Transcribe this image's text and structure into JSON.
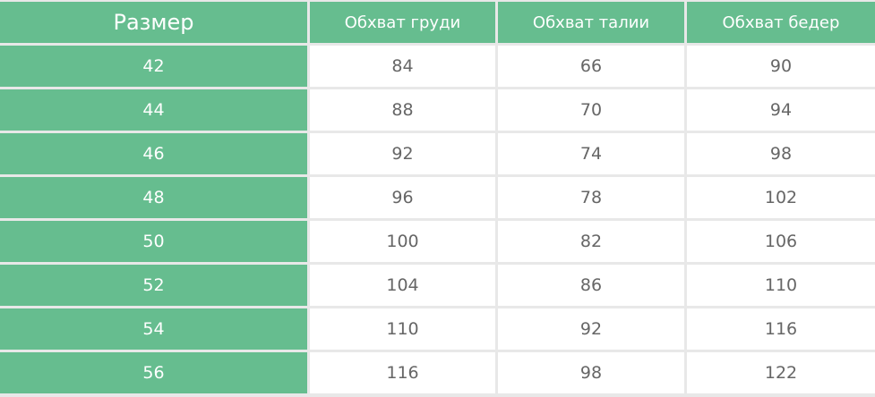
{
  "table": {
    "headers": [
      "Размер",
      "Обхват груди",
      "Обхват талии",
      "Обхват бедер"
    ],
    "rows": [
      [
        "42",
        "84",
        "66",
        "90"
      ],
      [
        "44",
        "88",
        "70",
        "94"
      ],
      [
        "46",
        "92",
        "74",
        "98"
      ],
      [
        "48",
        "96",
        "78",
        "102"
      ],
      [
        "50",
        "100",
        "82",
        "106"
      ],
      [
        "52",
        "104",
        "86",
        "110"
      ],
      [
        "54",
        "110",
        "92",
        "116"
      ],
      [
        "56",
        "116",
        "98",
        "122"
      ]
    ]
  },
  "colors": {
    "accent": "#66bd8f",
    "border": "#e8e8e8",
    "text": "#666666"
  }
}
